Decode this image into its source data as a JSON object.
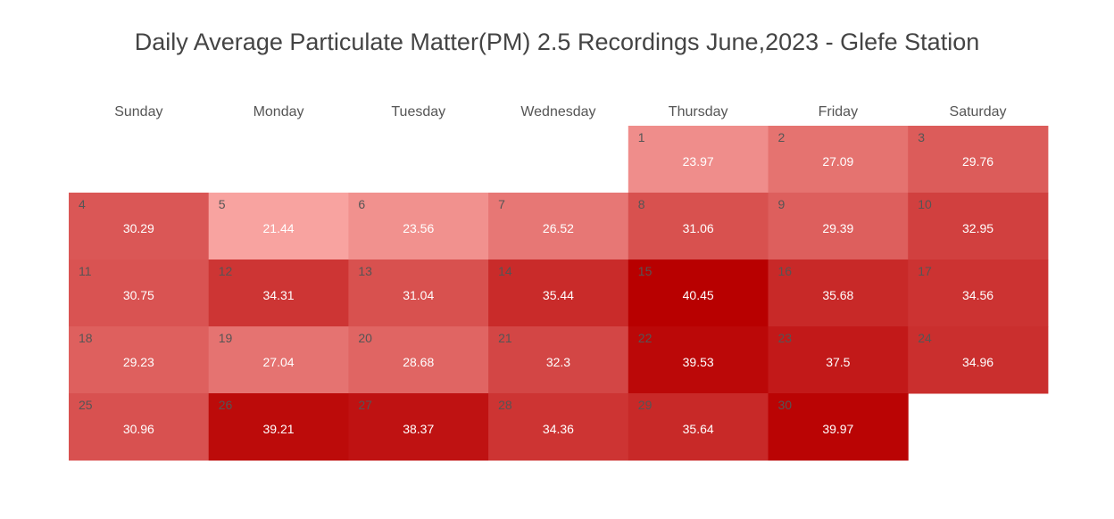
{
  "chart_data": {
    "type": "heatmap",
    "title": "Daily Average Particulate Matter(PM) 2.5 Recordings June,2023 - Glefe Station",
    "weekdays": [
      "Sunday",
      "Monday",
      "Tuesday",
      "Wednesday",
      "Thursday",
      "Friday",
      "Saturday"
    ],
    "first_weekday_index": 4,
    "days": [
      1,
      2,
      3,
      4,
      5,
      6,
      7,
      8,
      9,
      10,
      11,
      12,
      13,
      14,
      15,
      16,
      17,
      18,
      19,
      20,
      21,
      22,
      23,
      24,
      25,
      26,
      27,
      28,
      29,
      30
    ],
    "values": [
      23.97,
      27.09,
      29.76,
      30.29,
      21.44,
      23.56,
      26.52,
      31.06,
      29.39,
      32.95,
      30.75,
      34.31,
      31.04,
      35.44,
      40.45,
      35.68,
      34.56,
      29.23,
      27.04,
      28.68,
      32.3,
      39.53,
      37.5,
      34.96,
      30.96,
      39.21,
      38.37,
      34.36,
      35.64,
      39.97
    ],
    "value_labels": [
      "23.97",
      "27.09",
      "29.76",
      "30.29",
      "21.44",
      "23.56",
      "26.52",
      "31.06",
      "29.39",
      "32.95",
      "30.75",
      "34.31",
      "31.04",
      "35.44",
      "40.45",
      "35.68",
      "34.56",
      "29.23",
      "27.04",
      "28.68",
      "32.3",
      "39.53",
      "37.5",
      "34.96",
      "30.96",
      "39.21",
      "38.37",
      "34.36",
      "35.64",
      "39.97"
    ],
    "color_scale": {
      "min_value": 21.44,
      "max_value": 40.45,
      "min_color": "#f8a3a0",
      "max_color": "#b80000"
    },
    "day_number_color": "#555555",
    "value_text_color": "#ffffff",
    "header_text_color": "#555555",
    "legend": "none",
    "grid": false
  }
}
